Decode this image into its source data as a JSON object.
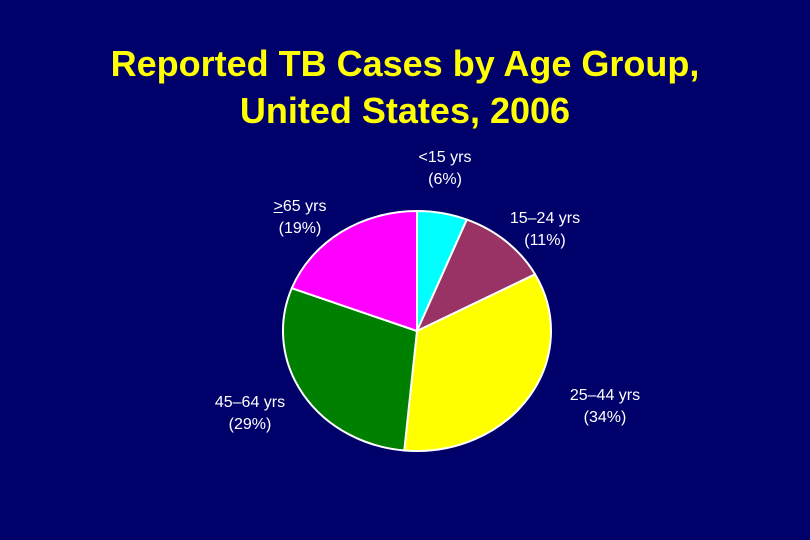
{
  "chart_data": {
    "type": "pie",
    "title_lines": [
      "Reported TB Cases by Age Group,",
      "United States, 2006"
    ],
    "slices": [
      {
        "name": "<15 yrs",
        "pct_label": "(6%)",
        "value": 6,
        "color": "#00ffff"
      },
      {
        "name": "15–24 yrs",
        "pct_label": "(11%)",
        "value": 11,
        "color": "#993366"
      },
      {
        "name": "25–44 yrs",
        "pct_label": "(34%)",
        "value": 34,
        "color": "#ffff00"
      },
      {
        "name": "45–64 yrs",
        "pct_label": "(29%)",
        "value": 29,
        "color": "#008000"
      },
      {
        "name_prefix": ">",
        "name_rest": "65 yrs",
        "pct_label": "(19%)",
        "value": 19,
        "color": "#ff00ff"
      }
    ],
    "slice_border_color": "#ffffff",
    "background_color": "#00006b",
    "title_color": "#ffff00",
    "label_color": "#ffffff"
  }
}
